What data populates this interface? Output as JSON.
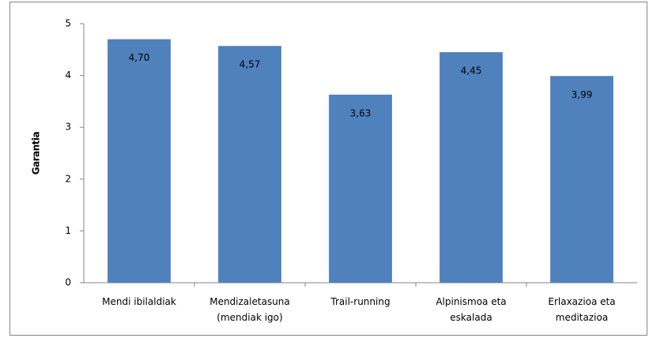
{
  "chart_data": {
    "type": "bar",
    "y_label": "Garantia",
    "categories": [
      "Mendi ibilaldiak",
      "Mendizaletasuna (mendiak igo)",
      "Trail-running",
      "Alpinismoa eta eskalada",
      "Erlaxazioa eta meditazioa"
    ],
    "values": [
      4.7,
      4.57,
      3.63,
      4.45,
      3.99
    ],
    "value_labels": [
      "4,70",
      "4,57",
      "3,63",
      "4,45",
      "3,99"
    ],
    "color": "#4f81bd",
    "ylim": [
      0,
      5
    ],
    "yticks": [
      0,
      1,
      2,
      3,
      4,
      5
    ],
    "grid": false
  }
}
